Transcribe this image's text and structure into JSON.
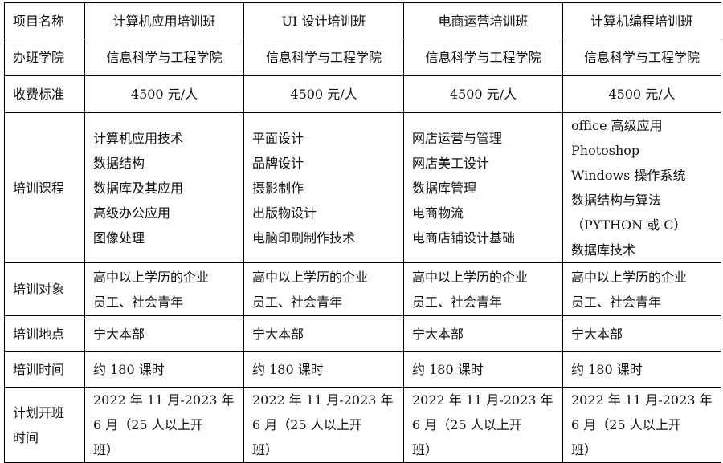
{
  "table": {
    "rows": [
      {
        "label": "项目名称",
        "cells": [
          "计算机应用培训班",
          "UI 设计培训班",
          "电商运营培训班",
          "计算机编程培训班"
        ],
        "center": true
      },
      {
        "label": "办班学院",
        "cells": [
          "信息科学与工程学院",
          "信息科学与工程学院",
          "信息科学与工程学院",
          "信息科学与工程学院"
        ],
        "center": true
      },
      {
        "label": "收费标准",
        "cells": [
          "4500 元/人",
          "4500 元/人",
          "4500 元/人",
          "4500 元/人"
        ],
        "center": true
      },
      {
        "label": "培训课程",
        "cells": [
          [
            "计算机应用技术",
            "数据结构",
            "数据库及其应用",
            "高级办公应用",
            "图像处理"
          ],
          [
            "平面设计",
            "品牌设计",
            "摄影制作",
            "出版物设计",
            "电脑印刷制作技术"
          ],
          [
            "网店运营与管理",
            "网店美工设计",
            "数据库管理",
            "电商物流",
            "电商店铺设计基础"
          ],
          [
            "office 高级应用",
            "Photoshop",
            "Windows 操作系统",
            "数据结构与算法",
            "（PYTHON 或 C）",
            "数据库技术"
          ]
        ]
      },
      {
        "label": "培训对象",
        "cells": [
          [
            "高中以上学历的企业",
            "员工、社会青年"
          ],
          [
            "高中以上学历的企业",
            "员工、社会青年"
          ],
          [
            "高中以上学历的企业",
            "员工、社会青年"
          ],
          [
            "高中以上学历的企业",
            "员工、社会青年"
          ]
        ]
      },
      {
        "label": "培训地点",
        "cells": [
          "宁大本部",
          "宁大本部",
          "宁大本部",
          "宁大本部"
        ]
      },
      {
        "label": "培训时间",
        "cells": [
          "约 180 课时",
          "约 180 课时",
          "约 180 课时",
          "约 180 课时"
        ]
      },
      {
        "label": [
          "计划开班",
          "时间"
        ],
        "cells": [
          [
            "2022 年 11 月-2023 年",
            "6 月（25 人以上开",
            "班）"
          ],
          [
            "2022 年 11 月-2023 年",
            "6 月（25 人以上开",
            "班）"
          ],
          [
            "2022 年 11 月-2023 年",
            "6 月（25 人以上开",
            "班）"
          ],
          [
            "2022 年 11 月-2023 年",
            "6 月（25 人以上开",
            "班）"
          ]
        ]
      }
    ]
  }
}
